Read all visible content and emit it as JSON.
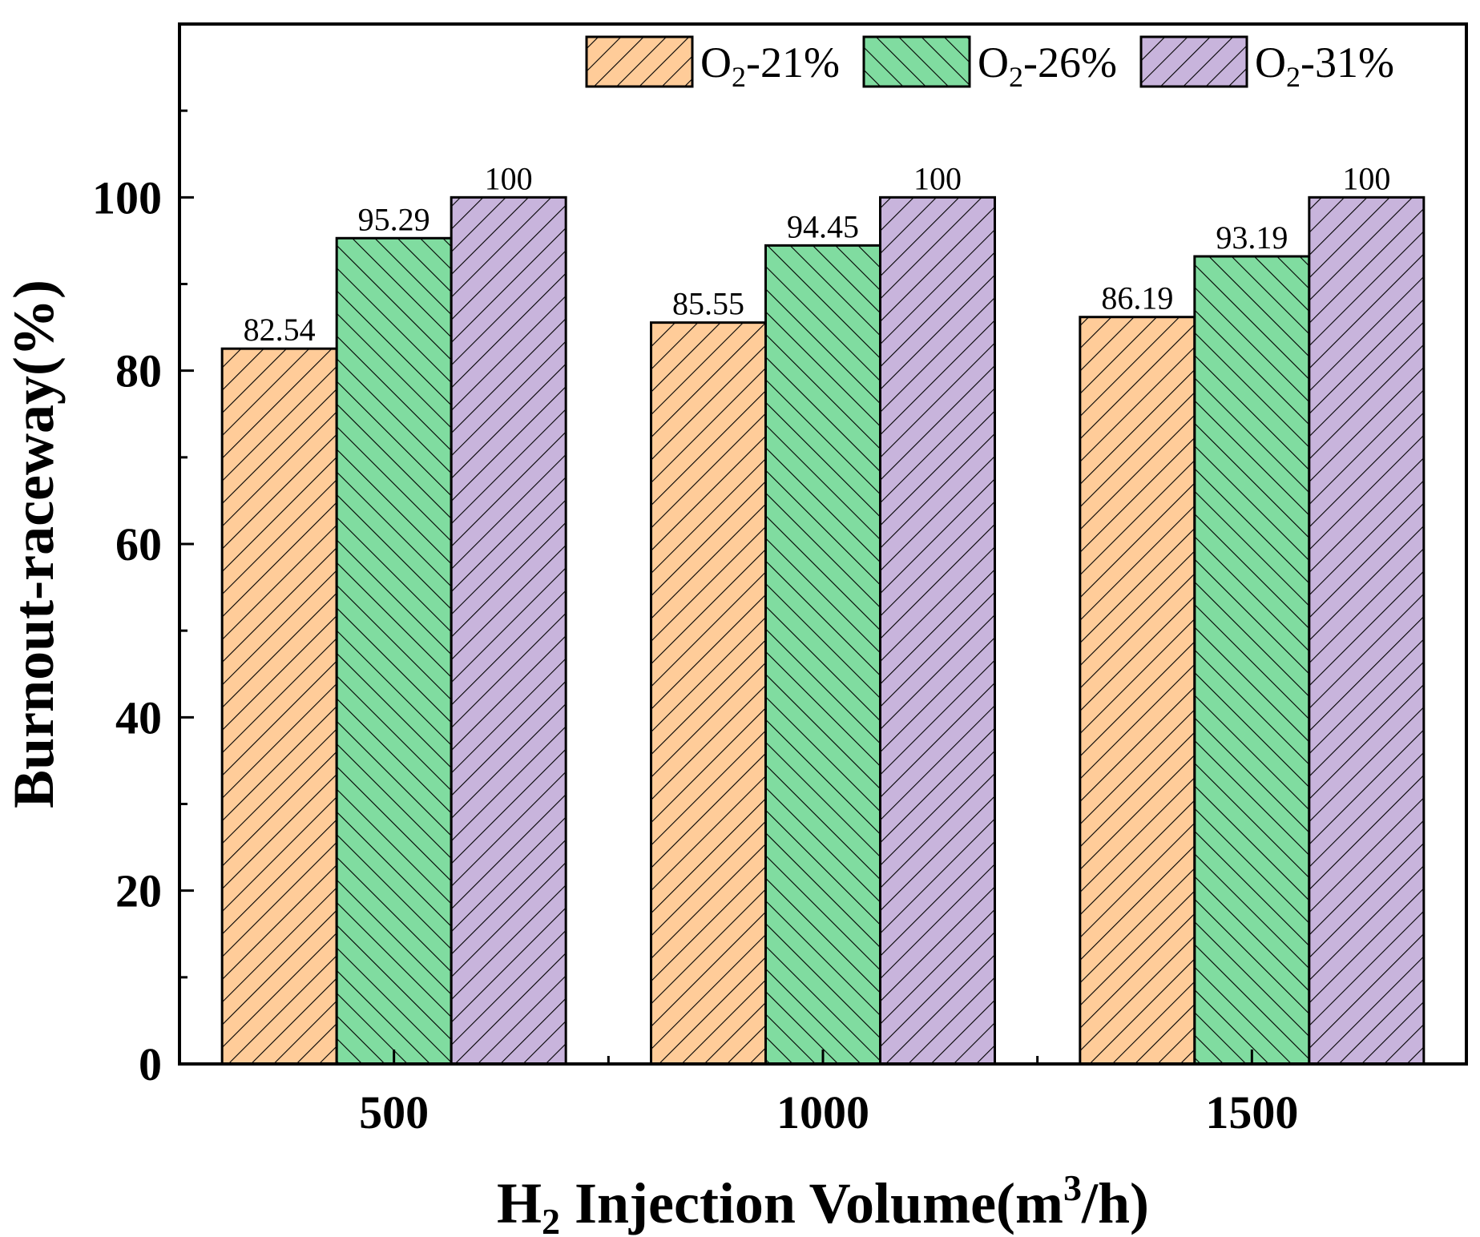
{
  "chart_data": {
    "type": "bar",
    "title": "",
    "categories": [
      "500",
      "1000",
      "1500"
    ],
    "series": [
      {
        "name": "O2-21%",
        "legend_base": "O",
        "legend_sub": "2",
        "legend_rest": "-21%",
        "color": "#FFCC99",
        "hatch": "forward",
        "values": [
          82.54,
          85.55,
          86.19
        ],
        "labels": [
          "82.54",
          "85.55",
          "86.19"
        ]
      },
      {
        "name": "O2-26%",
        "legend_base": "O",
        "legend_sub": "2",
        "legend_rest": "-26%",
        "color": "#80DCA0",
        "hatch": "backward",
        "values": [
          95.29,
          94.45,
          93.19
        ],
        "labels": [
          "95.29",
          "94.45",
          "93.19"
        ]
      },
      {
        "name": "O2-31%",
        "legend_base": "O",
        "legend_sub": "2",
        "legend_rest": "-31%",
        "color": "#C8B4DC",
        "hatch": "forward",
        "values": [
          100,
          100,
          100
        ],
        "labels": [
          "100",
          "100",
          "100"
        ]
      }
    ],
    "ylabel": "Burnout-raceway(%)",
    "xlabel": {
      "pre": "H",
      "sub": "2",
      "mid": " Injection Volume(m",
      "sup": "3",
      "post": "/h)"
    },
    "ylim": [
      0,
      120
    ],
    "yticks": [
      0,
      20,
      40,
      60,
      80,
      100
    ],
    "yticks_labels": [
      "0",
      "20",
      "40",
      "60",
      "80",
      "100"
    ],
    "yminor_step": 10,
    "grid": false,
    "legend_position": "top-right"
  }
}
